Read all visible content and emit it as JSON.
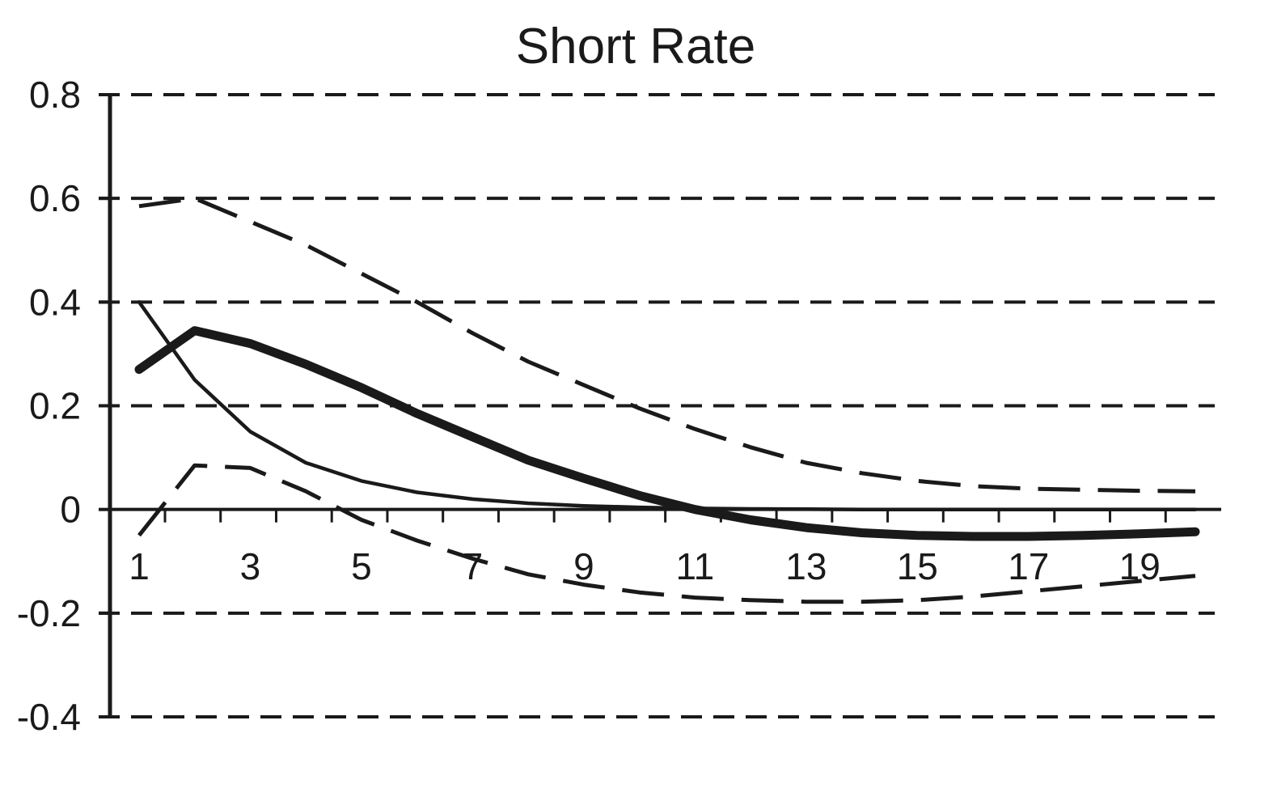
{
  "chart_data": {
    "type": "line",
    "title": "Short Rate",
    "xlabel": "",
    "ylabel": "",
    "x": [
      1,
      2,
      3,
      4,
      5,
      6,
      7,
      8,
      9,
      10,
      11,
      12,
      13,
      14,
      15,
      16,
      17,
      18,
      19,
      20
    ],
    "x_tick_labels": [
      "1",
      "3",
      "5",
      "7",
      "9",
      "11",
      "13",
      "15",
      "17",
      "19"
    ],
    "y_tick_labels": [
      "0.8",
      "0.6",
      "0.4",
      "0.2",
      "0",
      "-0.2",
      "-0.4"
    ],
    "y_ticks": [
      0.8,
      0.6,
      0.4,
      0.2,
      0,
      -0.2,
      -0.4
    ],
    "xlim": [
      0.5,
      20.5
    ],
    "ylim": [
      -0.4,
      0.8
    ],
    "grid": "dashed horizontal",
    "legend": "none",
    "colors": {
      "ink": "#1a1a1a",
      "background": "#ffffff"
    },
    "series": [
      {
        "style": "thick-solid",
        "values": [
          0.27,
          0.345,
          0.32,
          0.28,
          0.235,
          0.185,
          0.14,
          0.095,
          0.06,
          0.027,
          0.0,
          -0.02,
          -0.035,
          -0.045,
          -0.05,
          -0.052,
          -0.052,
          -0.05,
          -0.047,
          -0.043
        ]
      },
      {
        "style": "thin-solid",
        "values": [
          0.4,
          0.25,
          0.15,
          0.09,
          0.055,
          0.033,
          0.02,
          0.012,
          0.007,
          0.004,
          0.002,
          0.001,
          0.0005,
          0.0,
          0.0,
          0.0,
          0.0,
          0.0,
          0.0,
          0.0
        ]
      },
      {
        "style": "dashed-upper",
        "values": [
          0.585,
          0.6,
          0.555,
          0.51,
          0.455,
          0.4,
          0.34,
          0.285,
          0.24,
          0.195,
          0.155,
          0.12,
          0.09,
          0.07,
          0.055,
          0.045,
          0.04,
          0.038,
          0.036,
          0.035
        ]
      },
      {
        "style": "dashed-lower",
        "values": [
          -0.05,
          0.085,
          0.08,
          0.035,
          -0.02,
          -0.06,
          -0.095,
          -0.125,
          -0.145,
          -0.16,
          -0.17,
          -0.175,
          -0.178,
          -0.178,
          -0.175,
          -0.168,
          -0.158,
          -0.148,
          -0.138,
          -0.128
        ]
      }
    ]
  }
}
